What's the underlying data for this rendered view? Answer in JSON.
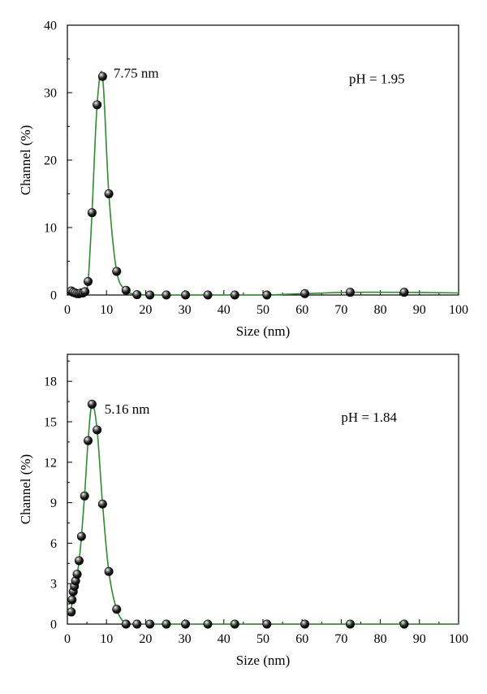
{
  "chart_data": [
    {
      "type": "line",
      "xlabel": "Size (nm)",
      "ylabel": "Channel (%)",
      "xlim": [
        0,
        100
      ],
      "ylim": [
        0,
        40
      ],
      "xticks": [
        "0",
        "10",
        "20",
        "30",
        "40",
        "50",
        "60",
        "70",
        "80",
        "90",
        "100"
      ],
      "yticks": [
        "0",
        "10",
        "20",
        "30",
        "40"
      ],
      "grid": false,
      "line_color": "#2e8b2e",
      "marker": "black-sphere",
      "annotations": [
        {
          "text": "7.75 nm",
          "x": 11.8,
          "y": 32.2
        },
        {
          "text": "pH = 1.95",
          "x": 72,
          "y": 31.4
        }
      ],
      "series": [
        {
          "x": [
            1.0,
            1.5,
            2.0,
            2.5,
            3.0,
            3.5,
            4.0,
            4.5,
            5.3,
            6.3,
            7.6,
            9.0,
            10.6,
            12.6,
            15.0,
            17.8,
            21.1,
            25.3,
            30.2,
            35.9,
            42.8,
            51.0,
            60.7,
            72.3,
            86.1,
            100
          ],
          "y": [
            0.6,
            0.4,
            0.3,
            0.2,
            0.2,
            0.3,
            0.3,
            0.5,
            2.0,
            12.2,
            28.2,
            32.4,
            15.0,
            3.5,
            0.7,
            0.05,
            0.0,
            0.0,
            0.0,
            0.0,
            0.0,
            0.0,
            0.2,
            0.4,
            0.4,
            0.3
          ],
          "markers": [
            true,
            true,
            true,
            true,
            true,
            true,
            true,
            true,
            true,
            true,
            true,
            true,
            true,
            true,
            true,
            true,
            true,
            true,
            true,
            true,
            true,
            true,
            true,
            true,
            true,
            false
          ]
        }
      ]
    },
    {
      "type": "line",
      "xlabel": "Size (nm)",
      "ylabel": "Channel (%)",
      "xlim": [
        0,
        100
      ],
      "ylim": [
        0,
        20
      ],
      "xticks": [
        "0",
        "10",
        "20",
        "30",
        "40",
        "50",
        "60",
        "70",
        "80",
        "90",
        "100"
      ],
      "yticks": [
        "0",
        "3",
        "6",
        "9",
        "12",
        "15",
        "18"
      ],
      "grid": false,
      "line_color": "#2e8b2e",
      "marker": "black-sphere",
      "annotations": [
        {
          "text": "5.16 nm",
          "x": 9.5,
          "y": 15.6
        },
        {
          "text": "pH = 1.84",
          "x": 70,
          "y": 15.0
        }
      ],
      "series": [
        {
          "x": [
            1.0,
            1.2,
            1.5,
            1.8,
            2.1,
            2.5,
            3.0,
            3.6,
            4.4,
            5.3,
            6.3,
            7.6,
            9.0,
            10.6,
            12.6,
            15.0,
            17.8,
            21.1,
            25.3,
            30.2,
            35.9,
            42.8,
            51.0,
            60.7,
            72.3,
            86.1,
            100
          ],
          "y": [
            0.9,
            1.8,
            2.4,
            2.8,
            3.2,
            3.7,
            4.7,
            6.5,
            9.5,
            13.6,
            16.3,
            14.4,
            8.9,
            3.9,
            1.1,
            0.0,
            0.0,
            0.0,
            0.0,
            0.0,
            0.0,
            0.0,
            0.0,
            0.0,
            0.0,
            0.0,
            0.0
          ],
          "markers": [
            true,
            true,
            true,
            true,
            true,
            true,
            true,
            true,
            true,
            true,
            true,
            true,
            true,
            true,
            true,
            true,
            true,
            true,
            true,
            true,
            true,
            true,
            true,
            true,
            true,
            true,
            false
          ]
        }
      ]
    }
  ]
}
